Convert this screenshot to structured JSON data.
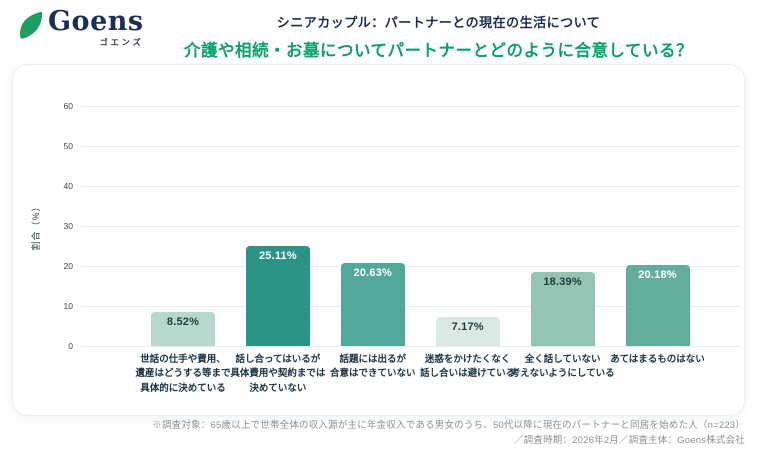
{
  "logo": {
    "name": "Goens",
    "kana": "ゴエンズ",
    "leaf_color": "#1e9e63"
  },
  "header": {
    "title": "シニアカップル：パートナーとの現在の生活について",
    "subtitle": "介護や相続・お墓についてパートナーとどのように合意している？"
  },
  "chart_data": {
    "type": "bar",
    "title": "介護や相続・お墓についてパートナーとどのように合意している？",
    "xlabel": "",
    "ylabel": "割合（%）",
    "ylim": [
      0,
      60
    ],
    "yticks": [
      0,
      10,
      20,
      30,
      40,
      50,
      60
    ],
    "grid": true,
    "legend": false,
    "categories": [
      [
        "世話の仕手や費用、",
        "遺産はどうする等まで",
        "具体的に決めている"
      ],
      [
        "話し合ってはいるが",
        "具体費用や契約までは",
        "決めていない"
      ],
      [
        "話題には出るが",
        "合意はできていない"
      ],
      [
        "迷惑をかけたくなく",
        "話し合いは避けている"
      ],
      [
        "全く話していない",
        "考えないようにしている"
      ],
      [
        "あてはまるものはない"
      ]
    ],
    "values": [
      8.52,
      25.11,
      20.63,
      7.17,
      18.39,
      20.18
    ],
    "value_labels": [
      "8.52%",
      "25.11%",
      "20.63%",
      "7.17%",
      "18.39%",
      "20.18%"
    ],
    "bar_colors": [
      "#b7d8cc",
      "#2b9485",
      "#4fa899",
      "#d9eae3",
      "#92c4b1",
      "#63ad9e"
    ],
    "value_label_colors": [
      "#1d3b3f",
      "#ffffff",
      "#ffffff",
      "#1d3b3f",
      "#1d3b3f",
      "#ffffff"
    ]
  },
  "footer": {
    "line1": "※調査対象：65歳以上で世帯全体の収入源が主に年金収入である男女のうち、50代以降に現在のパートナーと同居を始めた人（n=223）",
    "line2": "／調査時期：2026年2月／調査主体：Goens株式会社"
  },
  "colors": {
    "accent_green": "#0ca06a",
    "navy": "#1e2d4f",
    "gridline": "#e7eef0",
    "footer_gray": "#8b9196"
  }
}
